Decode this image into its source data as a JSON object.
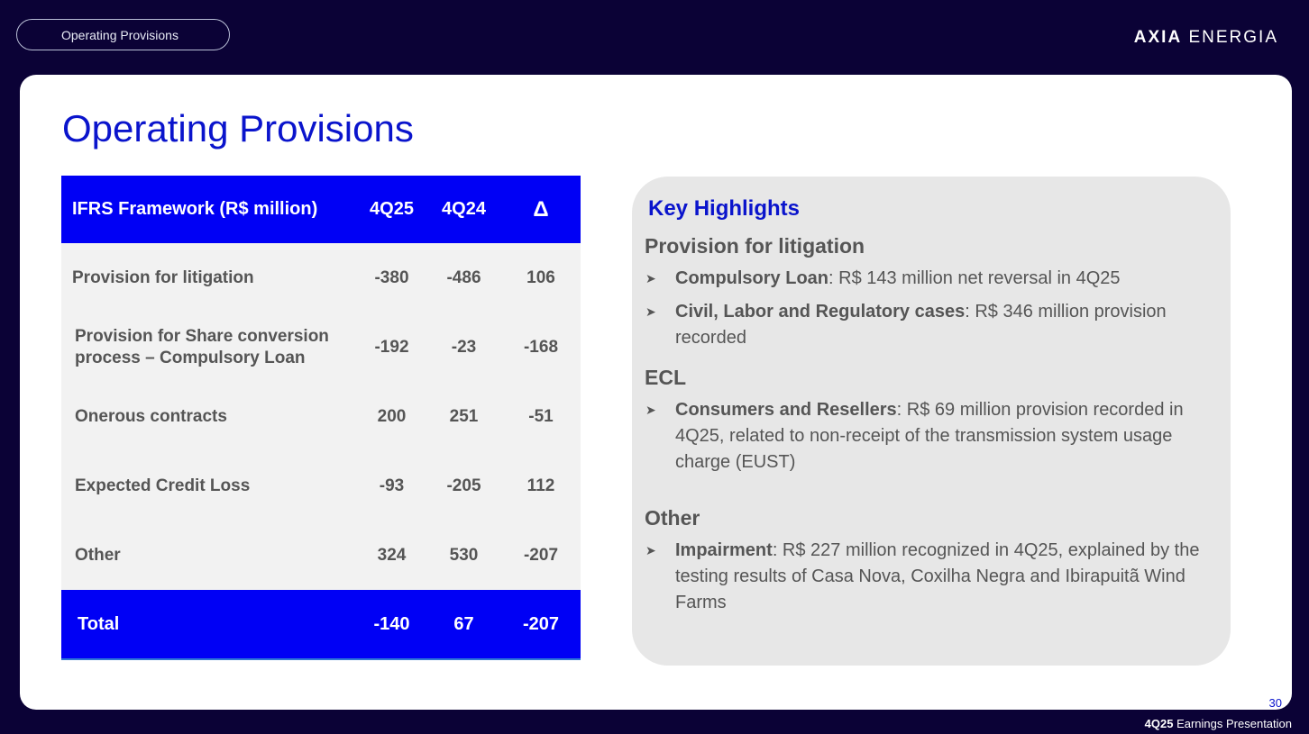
{
  "header": {
    "section_label": "Operating Provisions",
    "brand_bold": "AXIA",
    "brand_light": "ENERGIA"
  },
  "title": "Operating Provisions",
  "table": {
    "columns": [
      "IFRS Framework (R$ million)",
      "4Q25",
      "4Q24",
      "Δ"
    ],
    "rows": [
      {
        "label": "Provision for litigation",
        "q425": "-380",
        "q424": "-486",
        "delta": "106"
      },
      {
        "label": "Provision for Share conversion process –  Compulsory Loan",
        "q425": "-192",
        "q424": "-23",
        "delta": "-168"
      },
      {
        "label": "Onerous contracts",
        "q425": "200",
        "q424": "251",
        "delta": "-51"
      },
      {
        "label": "Expected Credit Loss",
        "q425": "-93",
        "q424": "-205",
        "delta": "112"
      },
      {
        "label": "Other",
        "q425": "324",
        "q424": "530",
        "delta": "-207"
      }
    ],
    "total": {
      "label": "Total",
      "q425": "-140",
      "q424": "67",
      "delta": "-207"
    }
  },
  "highlights": {
    "title": "Key Highlights",
    "sections": [
      {
        "heading": "Provision for litigation",
        "bullets": [
          {
            "bold": "Compulsory Loan",
            "text": ": R$ 143 million net reversal in 4Q25"
          },
          {
            "bold": "Civil, Labor and Regulatory cases",
            "text": ": R$ 346 million provision recorded"
          }
        ]
      },
      {
        "heading": "ECL",
        "bullets": [
          {
            "bold": "Consumers and Resellers",
            "text": ": R$ 69 million provision recorded in 4Q25, related to non-receipt of the transmission system usage charge (EUST)"
          }
        ]
      },
      {
        "heading": "Other",
        "bullets": [
          {
            "bold": "Impairment",
            "text": ": R$ 227 million recognized in 4Q25, explained by the testing results of Casa Nova, Coxilha Negra and Ibirapuitã Wind Farms"
          }
        ]
      }
    ]
  },
  "page_number": "30",
  "footer": {
    "bold": "4Q25",
    "text": "Earnings Presentation"
  },
  "colors": {
    "background": "#0b0236",
    "accent_blue": "#0000f5",
    "title_blue": "#0a14cc",
    "text_gray": "#555555"
  },
  "icons": {
    "bullet": "arrow-bullet-icon"
  }
}
